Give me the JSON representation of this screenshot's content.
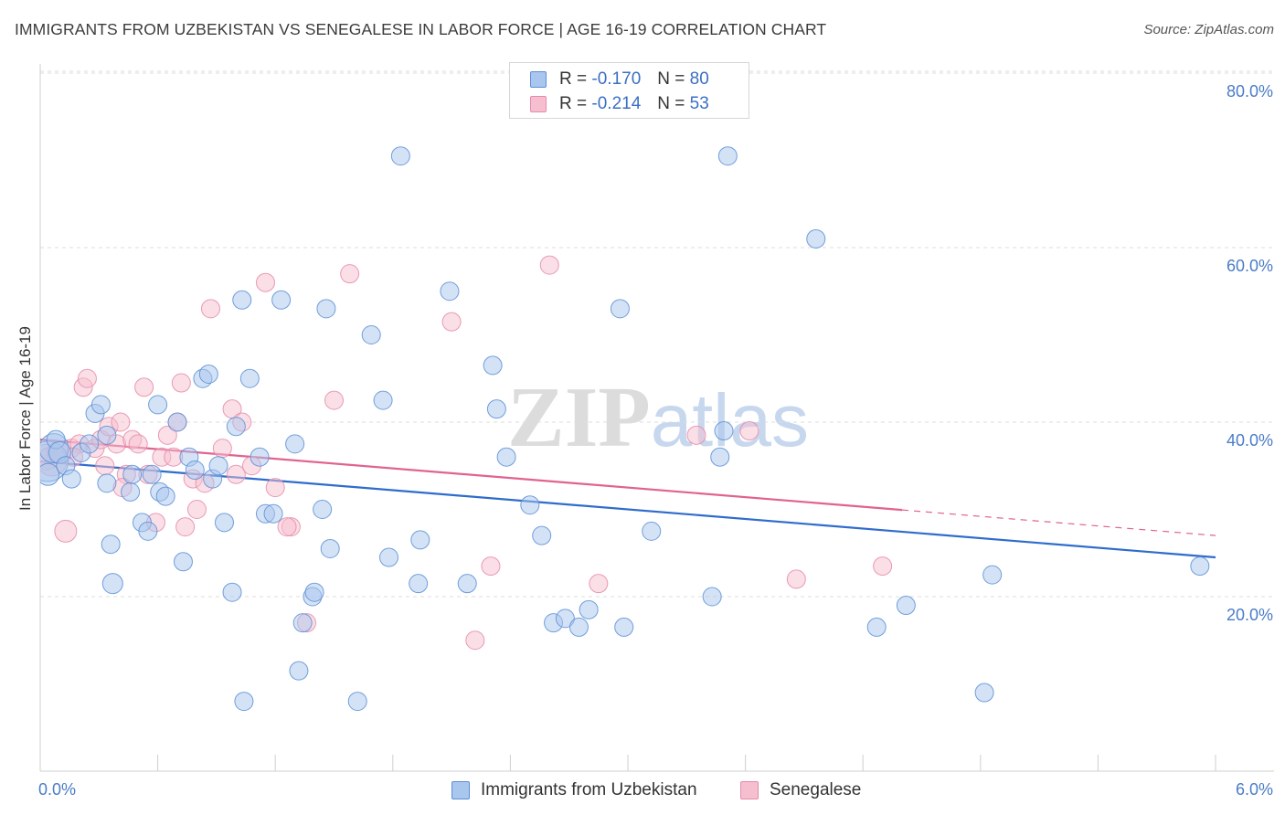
{
  "header": {
    "title": "IMMIGRANTS FROM UZBEKISTAN VS SENEGALESE IN LABOR FORCE | AGE 16-19 CORRELATION CHART",
    "source": "Source: ZipAtlas.com"
  },
  "colors": {
    "blue_fill": "#a9c6ee",
    "blue_stroke": "#5b8fd6",
    "blue_line": "#2f6ccc",
    "pink_fill": "#f6bfd0",
    "pink_stroke": "#e68aa8",
    "pink_line": "#e06390",
    "tick_text": "#4a7cc7",
    "grid": "#dedede"
  },
  "legend": {
    "rows": [
      {
        "r_label": "R =",
        "r_value": "-0.170",
        "n_label": "N =",
        "n_value": "80"
      },
      {
        "r_label": "R =",
        "r_value": "-0.214",
        "n_label": "N =",
        "n_value": "53"
      }
    ]
  },
  "bottom_legend": {
    "series1": "Immigrants from Uzbekistan",
    "series2": "Senegalese"
  },
  "chart_data": {
    "type": "scatter",
    "title": "IMMIGRANTS FROM UZBEKISTAN VS SENEGALESE IN LABOR FORCE | AGE 16-19 CORRELATION CHART",
    "ylabel": "In Labor Force | Age 16-19",
    "xlabel": "",
    "xlim": [
      0,
      6
    ],
    "ylim": [
      0,
      85
    ],
    "x_tick_labels": {
      "min": "0.0%",
      "max": "6.0%"
    },
    "y_ticks": [
      20,
      40,
      60,
      80
    ],
    "y_tick_labels": [
      "20.0%",
      "40.0%",
      "60.0%",
      "80.0%"
    ],
    "grid": true,
    "legend_position": "top-center",
    "watermark": "ZIPatlas",
    "series": [
      {
        "name": "Immigrants from Uzbekistan",
        "trend": {
          "x0": 0,
          "y0": 35.5,
          "x1": 6,
          "y1": 24.5
        },
        "points": [
          [
            0.04,
            35.5,
            22
          ],
          [
            0.07,
            37.0,
            16
          ],
          [
            0.08,
            38.0,
            10
          ],
          [
            0.04,
            34.0,
            12
          ],
          [
            0.1,
            36.5,
            12
          ],
          [
            0.13,
            35.0,
            10
          ],
          [
            0.16,
            33.5,
            10
          ],
          [
            0.21,
            36.5,
            10
          ],
          [
            0.25,
            37.5,
            10
          ],
          [
            0.28,
            41.0,
            10
          ],
          [
            0.31,
            42.0,
            10
          ],
          [
            0.34,
            38.5,
            10
          ],
          [
            0.34,
            33.0,
            10
          ],
          [
            0.36,
            26.0,
            10
          ],
          [
            0.37,
            21.5,
            11
          ],
          [
            0.46,
            32.0,
            10
          ],
          [
            0.47,
            34.0,
            10
          ],
          [
            0.52,
            28.5,
            10
          ],
          [
            0.55,
            27.5,
            10
          ],
          [
            0.57,
            34.0,
            10
          ],
          [
            0.6,
            42.0,
            10
          ],
          [
            0.61,
            32.0,
            10
          ],
          [
            0.64,
            31.5,
            10
          ],
          [
            0.7,
            40.0,
            10
          ],
          [
            0.73,
            24.0,
            10
          ],
          [
            0.76,
            36.0,
            10
          ],
          [
            0.79,
            34.5,
            10
          ],
          [
            0.83,
            45.0,
            10
          ],
          [
            0.86,
            45.5,
            10
          ],
          [
            0.88,
            33.5,
            10
          ],
          [
            0.91,
            35.0,
            10
          ],
          [
            0.94,
            28.5,
            10
          ],
          [
            0.98,
            20.5,
            10
          ],
          [
            1.0,
            39.5,
            10
          ],
          [
            1.03,
            54.0,
            10
          ],
          [
            1.04,
            8.0,
            10
          ],
          [
            1.07,
            45.0,
            10
          ],
          [
            1.12,
            36.0,
            10
          ],
          [
            1.15,
            29.5,
            10
          ],
          [
            1.19,
            29.5,
            10
          ],
          [
            1.23,
            54.0,
            10
          ],
          [
            1.3,
            37.5,
            10
          ],
          [
            1.32,
            11.5,
            10
          ],
          [
            1.34,
            17.0,
            10
          ],
          [
            1.39,
            20.0,
            10
          ],
          [
            1.4,
            20.5,
            10
          ],
          [
            1.44,
            30.0,
            10
          ],
          [
            1.46,
            53.0,
            10
          ],
          [
            1.48,
            25.5,
            10
          ],
          [
            1.62,
            8.0,
            10
          ],
          [
            1.69,
            50.0,
            10
          ],
          [
            1.75,
            42.5,
            10
          ],
          [
            1.78,
            24.5,
            10
          ],
          [
            1.84,
            70.5,
            10
          ],
          [
            1.93,
            21.5,
            10
          ],
          [
            1.94,
            26.5,
            10
          ],
          [
            2.09,
            55.0,
            10
          ],
          [
            2.18,
            21.5,
            10
          ],
          [
            2.31,
            46.5,
            10
          ],
          [
            2.33,
            41.5,
            10
          ],
          [
            2.38,
            36.0,
            10
          ],
          [
            2.5,
            30.5,
            10
          ],
          [
            2.56,
            27.0,
            10
          ],
          [
            2.62,
            17.0,
            10
          ],
          [
            2.68,
            17.5,
            10
          ],
          [
            2.75,
            16.5,
            10
          ],
          [
            2.8,
            18.5,
            10
          ],
          [
            2.96,
            53.0,
            10
          ],
          [
            2.98,
            16.5,
            10
          ],
          [
            3.12,
            27.5,
            10
          ],
          [
            3.43,
            20.0,
            10
          ],
          [
            3.47,
            36.0,
            10
          ],
          [
            3.49,
            39.0,
            10
          ],
          [
            3.51,
            70.5,
            10
          ],
          [
            3.96,
            61.0,
            10
          ],
          [
            4.27,
            16.5,
            10
          ],
          [
            4.42,
            19.0,
            10
          ],
          [
            4.82,
            9.0,
            10
          ],
          [
            4.86,
            22.5,
            10
          ],
          [
            5.92,
            23.5,
            10
          ]
        ]
      },
      {
        "name": "Senegalese",
        "trend": {
          "x0": 0,
          "y0": 38.0,
          "x1": 6,
          "y1": 27.0,
          "solid_until_x": 4.4
        },
        "points": [
          [
            0.03,
            36.0,
            14
          ],
          [
            0.06,
            35.5,
            16
          ],
          [
            0.09,
            36.5,
            12
          ],
          [
            0.13,
            27.5,
            12
          ],
          [
            0.16,
            37.0,
            10
          ],
          [
            0.2,
            37.5,
            10
          ],
          [
            0.22,
            44.0,
            10
          ],
          [
            0.24,
            45.0,
            10
          ],
          [
            0.28,
            37.0,
            10
          ],
          [
            0.31,
            38.0,
            10
          ],
          [
            0.33,
            35.0,
            10
          ],
          [
            0.35,
            39.5,
            10
          ],
          [
            0.39,
            37.5,
            10
          ],
          [
            0.41,
            40.0,
            10
          ],
          [
            0.44,
            34.0,
            10
          ],
          [
            0.47,
            38.0,
            10
          ],
          [
            0.5,
            37.5,
            10
          ],
          [
            0.53,
            44.0,
            10
          ],
          [
            0.55,
            34.0,
            10
          ],
          [
            0.59,
            28.5,
            10
          ],
          [
            0.62,
            36.0,
            10
          ],
          [
            0.65,
            38.5,
            10
          ],
          [
            0.68,
            36.0,
            10
          ],
          [
            0.7,
            40.0,
            10
          ],
          [
            0.72,
            44.5,
            10
          ],
          [
            0.74,
            28.0,
            10
          ],
          [
            0.78,
            33.5,
            10
          ],
          [
            0.8,
            30.0,
            10
          ],
          [
            0.84,
            33.0,
            10
          ],
          [
            0.87,
            53.0,
            10
          ],
          [
            0.93,
            37.0,
            10
          ],
          [
            0.98,
            41.5,
            10
          ],
          [
            1.0,
            34.0,
            10
          ],
          [
            1.03,
            40.0,
            10
          ],
          [
            1.08,
            35.0,
            10
          ],
          [
            1.15,
            56.0,
            10
          ],
          [
            1.2,
            32.5,
            10
          ],
          [
            1.28,
            28.0,
            10
          ],
          [
            1.36,
            17.0,
            10
          ],
          [
            1.5,
            42.5,
            10
          ],
          [
            1.58,
            57.0,
            10
          ],
          [
            2.1,
            51.5,
            10
          ],
          [
            2.22,
            15.0,
            10
          ],
          [
            2.3,
            23.5,
            10
          ],
          [
            2.6,
            58.0,
            10
          ],
          [
            2.85,
            21.5,
            10
          ],
          [
            3.35,
            38.5,
            10
          ],
          [
            3.62,
            39.0,
            10
          ],
          [
            3.86,
            22.0,
            10
          ],
          [
            4.3,
            23.5,
            10
          ],
          [
            0.17,
            36.0,
            10
          ],
          [
            0.42,
            32.5,
            10
          ],
          [
            1.26,
            28.0,
            10
          ]
        ]
      }
    ]
  }
}
